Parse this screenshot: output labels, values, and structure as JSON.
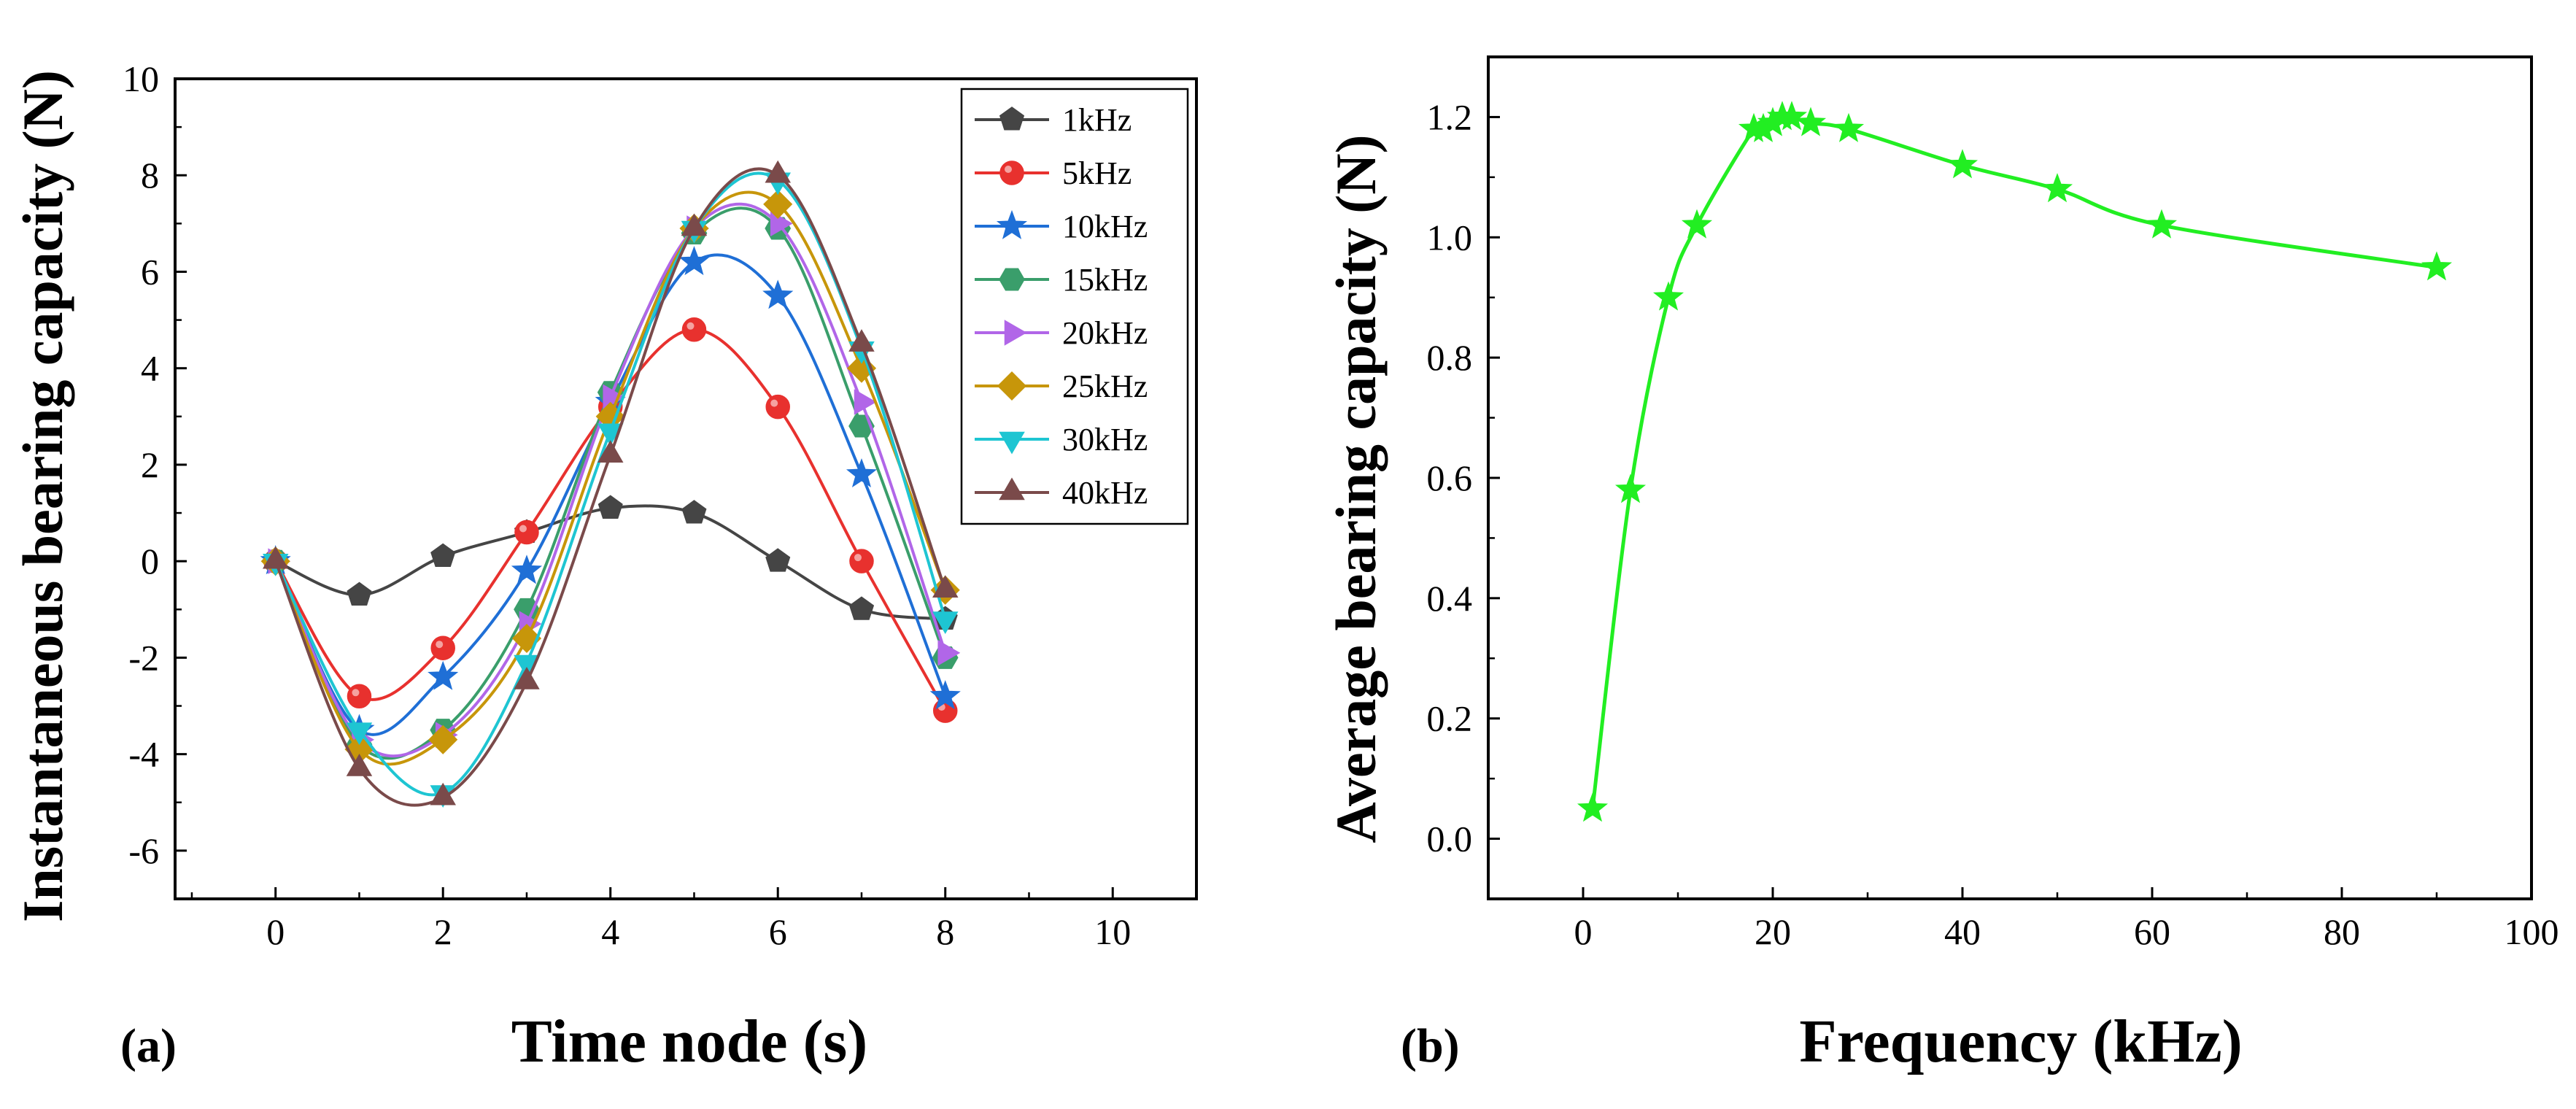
{
  "chart_data": [
    {
      "type": "line",
      "panel_label": "(a)",
      "xlabel": "Time node  (s)",
      "ylabel": "Instantaneous bearing capacity  (N)",
      "xlim": [
        -1.2,
        11
      ],
      "ylim": [
        -7,
        10
      ],
      "xticks": [
        0,
        2,
        4,
        6,
        8,
        10
      ],
      "yticks": [
        -6,
        -4,
        -2,
        0,
        2,
        4,
        6,
        8,
        10
      ],
      "legend_position": "top-right",
      "x": [
        0,
        1,
        2,
        3,
        4,
        5,
        6,
        7,
        8
      ],
      "series": [
        {
          "name": "1kHz",
          "color": "#454545",
          "marker": "pentagon",
          "values": [
            0,
            -0.7,
            0.1,
            0.6,
            1.1,
            1.0,
            0,
            -1.0,
            -1.2
          ]
        },
        {
          "name": "5kHz",
          "color": "#e8312e",
          "marker": "circle",
          "values": [
            0,
            -2.8,
            -1.8,
            0.6,
            3.2,
            4.8,
            3.2,
            0,
            -3.1
          ]
        },
        {
          "name": "10kHz",
          "color": "#1f6fd6",
          "marker": "star",
          "values": [
            0,
            -3.5,
            -2.4,
            -0.2,
            3.3,
            6.2,
            5.5,
            1.8,
            -2.8
          ]
        },
        {
          "name": "15kHz",
          "color": "#3a9e6b",
          "marker": "hexagon",
          "values": [
            0,
            -3.8,
            -3.5,
            -1.0,
            3.5,
            6.8,
            6.9,
            2.8,
            -2.0
          ]
        },
        {
          "name": "20kHz",
          "color": "#b166e8",
          "marker": "triangle-right",
          "values": [
            0,
            -3.7,
            -3.6,
            -1.3,
            3.4,
            6.9,
            7.0,
            3.3,
            -1.9
          ]
        },
        {
          "name": "25kHz",
          "color": "#c7960a",
          "marker": "diamond",
          "values": [
            0,
            -3.9,
            -3.7,
            -1.6,
            3.0,
            6.9,
            7.4,
            4.0,
            -0.6
          ]
        },
        {
          "name": "30kHz",
          "color": "#1ec5d2",
          "marker": "triangle-down",
          "values": [
            0,
            -3.5,
            -4.8,
            -2.1,
            2.7,
            6.9,
            7.9,
            4.4,
            -1.2
          ]
        },
        {
          "name": "40kHz",
          "color": "#7a4a4a",
          "marker": "triangle-up",
          "values": [
            0,
            -4.3,
            -4.9,
            -2.5,
            2.2,
            6.9,
            8.0,
            4.5,
            -0.6
          ]
        }
      ]
    },
    {
      "type": "line",
      "panel_label": "(b)",
      "xlabel": "Frequency  (kHz)",
      "ylabel": "Average bearing capacity  (N)",
      "xlim": [
        -10,
        100
      ],
      "ylim": [
        -0.1,
        1.3
      ],
      "xticks": [
        0,
        20,
        40,
        60,
        80,
        100
      ],
      "yticks": [
        0.0,
        0.2,
        0.4,
        0.6,
        0.8,
        1.0,
        1.2
      ],
      "series": [
        {
          "name": "Average bearing capacity",
          "color": "#22ee22",
          "marker": "star",
          "x": [
            1,
            5,
            9,
            12,
            18,
            19,
            20,
            21,
            22,
            24,
            28,
            40,
            50,
            61,
            90
          ],
          "values": [
            0.05,
            0.58,
            0.9,
            1.02,
            1.18,
            1.18,
            1.19,
            1.2,
            1.2,
            1.19,
            1.18,
            1.12,
            1.08,
            1.02,
            0.95
          ]
        }
      ]
    }
  ]
}
